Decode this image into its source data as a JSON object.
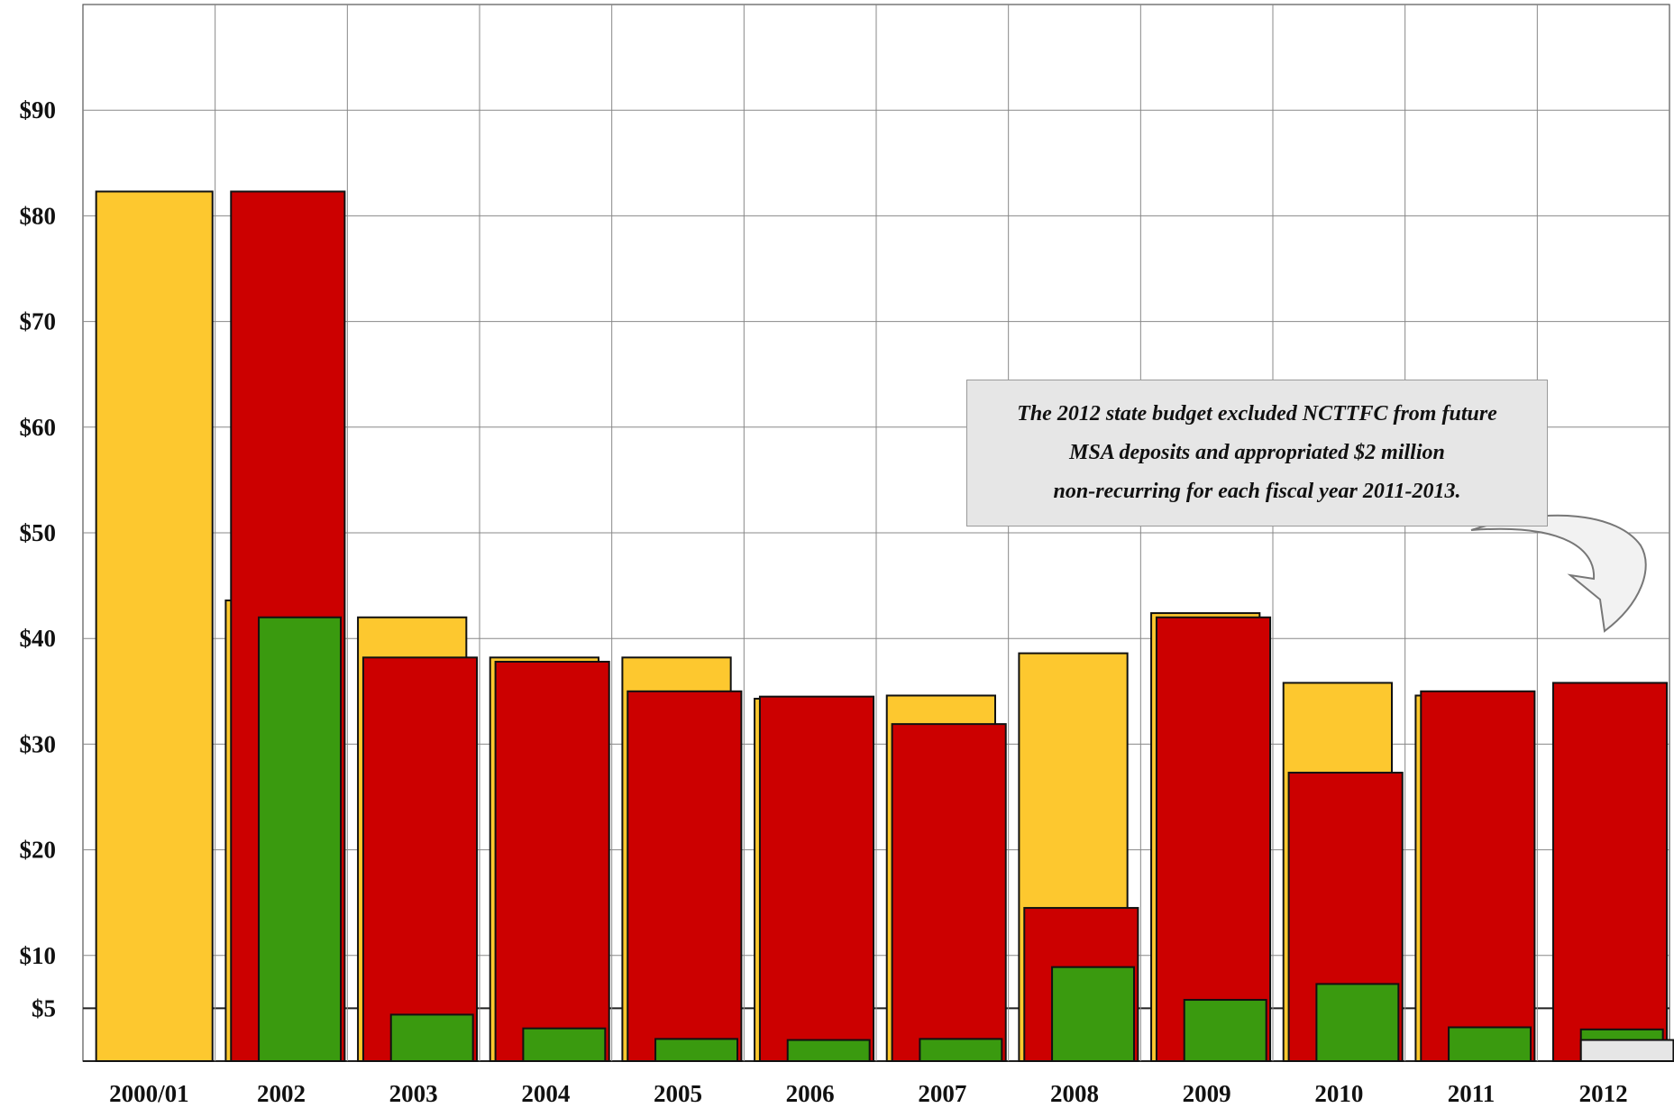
{
  "chart_data": {
    "type": "bar",
    "title": "",
    "xlabel": "",
    "ylabel": "",
    "ylim": [
      0,
      100
    ],
    "yticks": [
      {
        "value": 5,
        "label": "$5"
      },
      {
        "value": 10,
        "label": "$10"
      },
      {
        "value": 20,
        "label": "$20"
      },
      {
        "value": 30,
        "label": "$30"
      },
      {
        "value": 40,
        "label": "$40"
      },
      {
        "value": 50,
        "label": "$50"
      },
      {
        "value": 60,
        "label": "$60"
      },
      {
        "value": 70,
        "label": "$70"
      },
      {
        "value": 80,
        "label": "$80"
      },
      {
        "value": 90,
        "label": "$90"
      }
    ],
    "grid": true,
    "categories": [
      "2000/01",
      "2002",
      "2003",
      "2004",
      "2005",
      "2006",
      "2007",
      "2008",
      "2009",
      "2010",
      "2011",
      "2012"
    ],
    "series": [
      {
        "color": "#FDC82F",
        "values": [
          82.3,
          43.6,
          42.0,
          38.2,
          38.2,
          34.3,
          34.6,
          38.6,
          42.4,
          35.8,
          34.6,
          null
        ]
      },
      {
        "color": "#CC0000",
        "values": [
          null,
          82.3,
          38.2,
          37.8,
          35.0,
          34.5,
          31.9,
          14.5,
          42.0,
          27.3,
          35.0,
          35.8
        ]
      },
      {
        "color": "#3A9A0F",
        "values": [
          null,
          42.0,
          4.4,
          3.1,
          2.1,
          2.0,
          2.1,
          8.9,
          5.8,
          7.3,
          3.2,
          3.0
        ]
      },
      {
        "color": "#E6E6E6",
        "values": [
          null,
          null,
          null,
          null,
          null,
          null,
          null,
          null,
          null,
          null,
          null,
          2.0
        ]
      }
    ],
    "annotation": {
      "lines": [
        "The 2012 state budget excluded NCTTFC from future",
        "MSA deposits and appropriated $2 million",
        "non-recurring  for each fiscal year 2011-2013."
      ]
    }
  }
}
